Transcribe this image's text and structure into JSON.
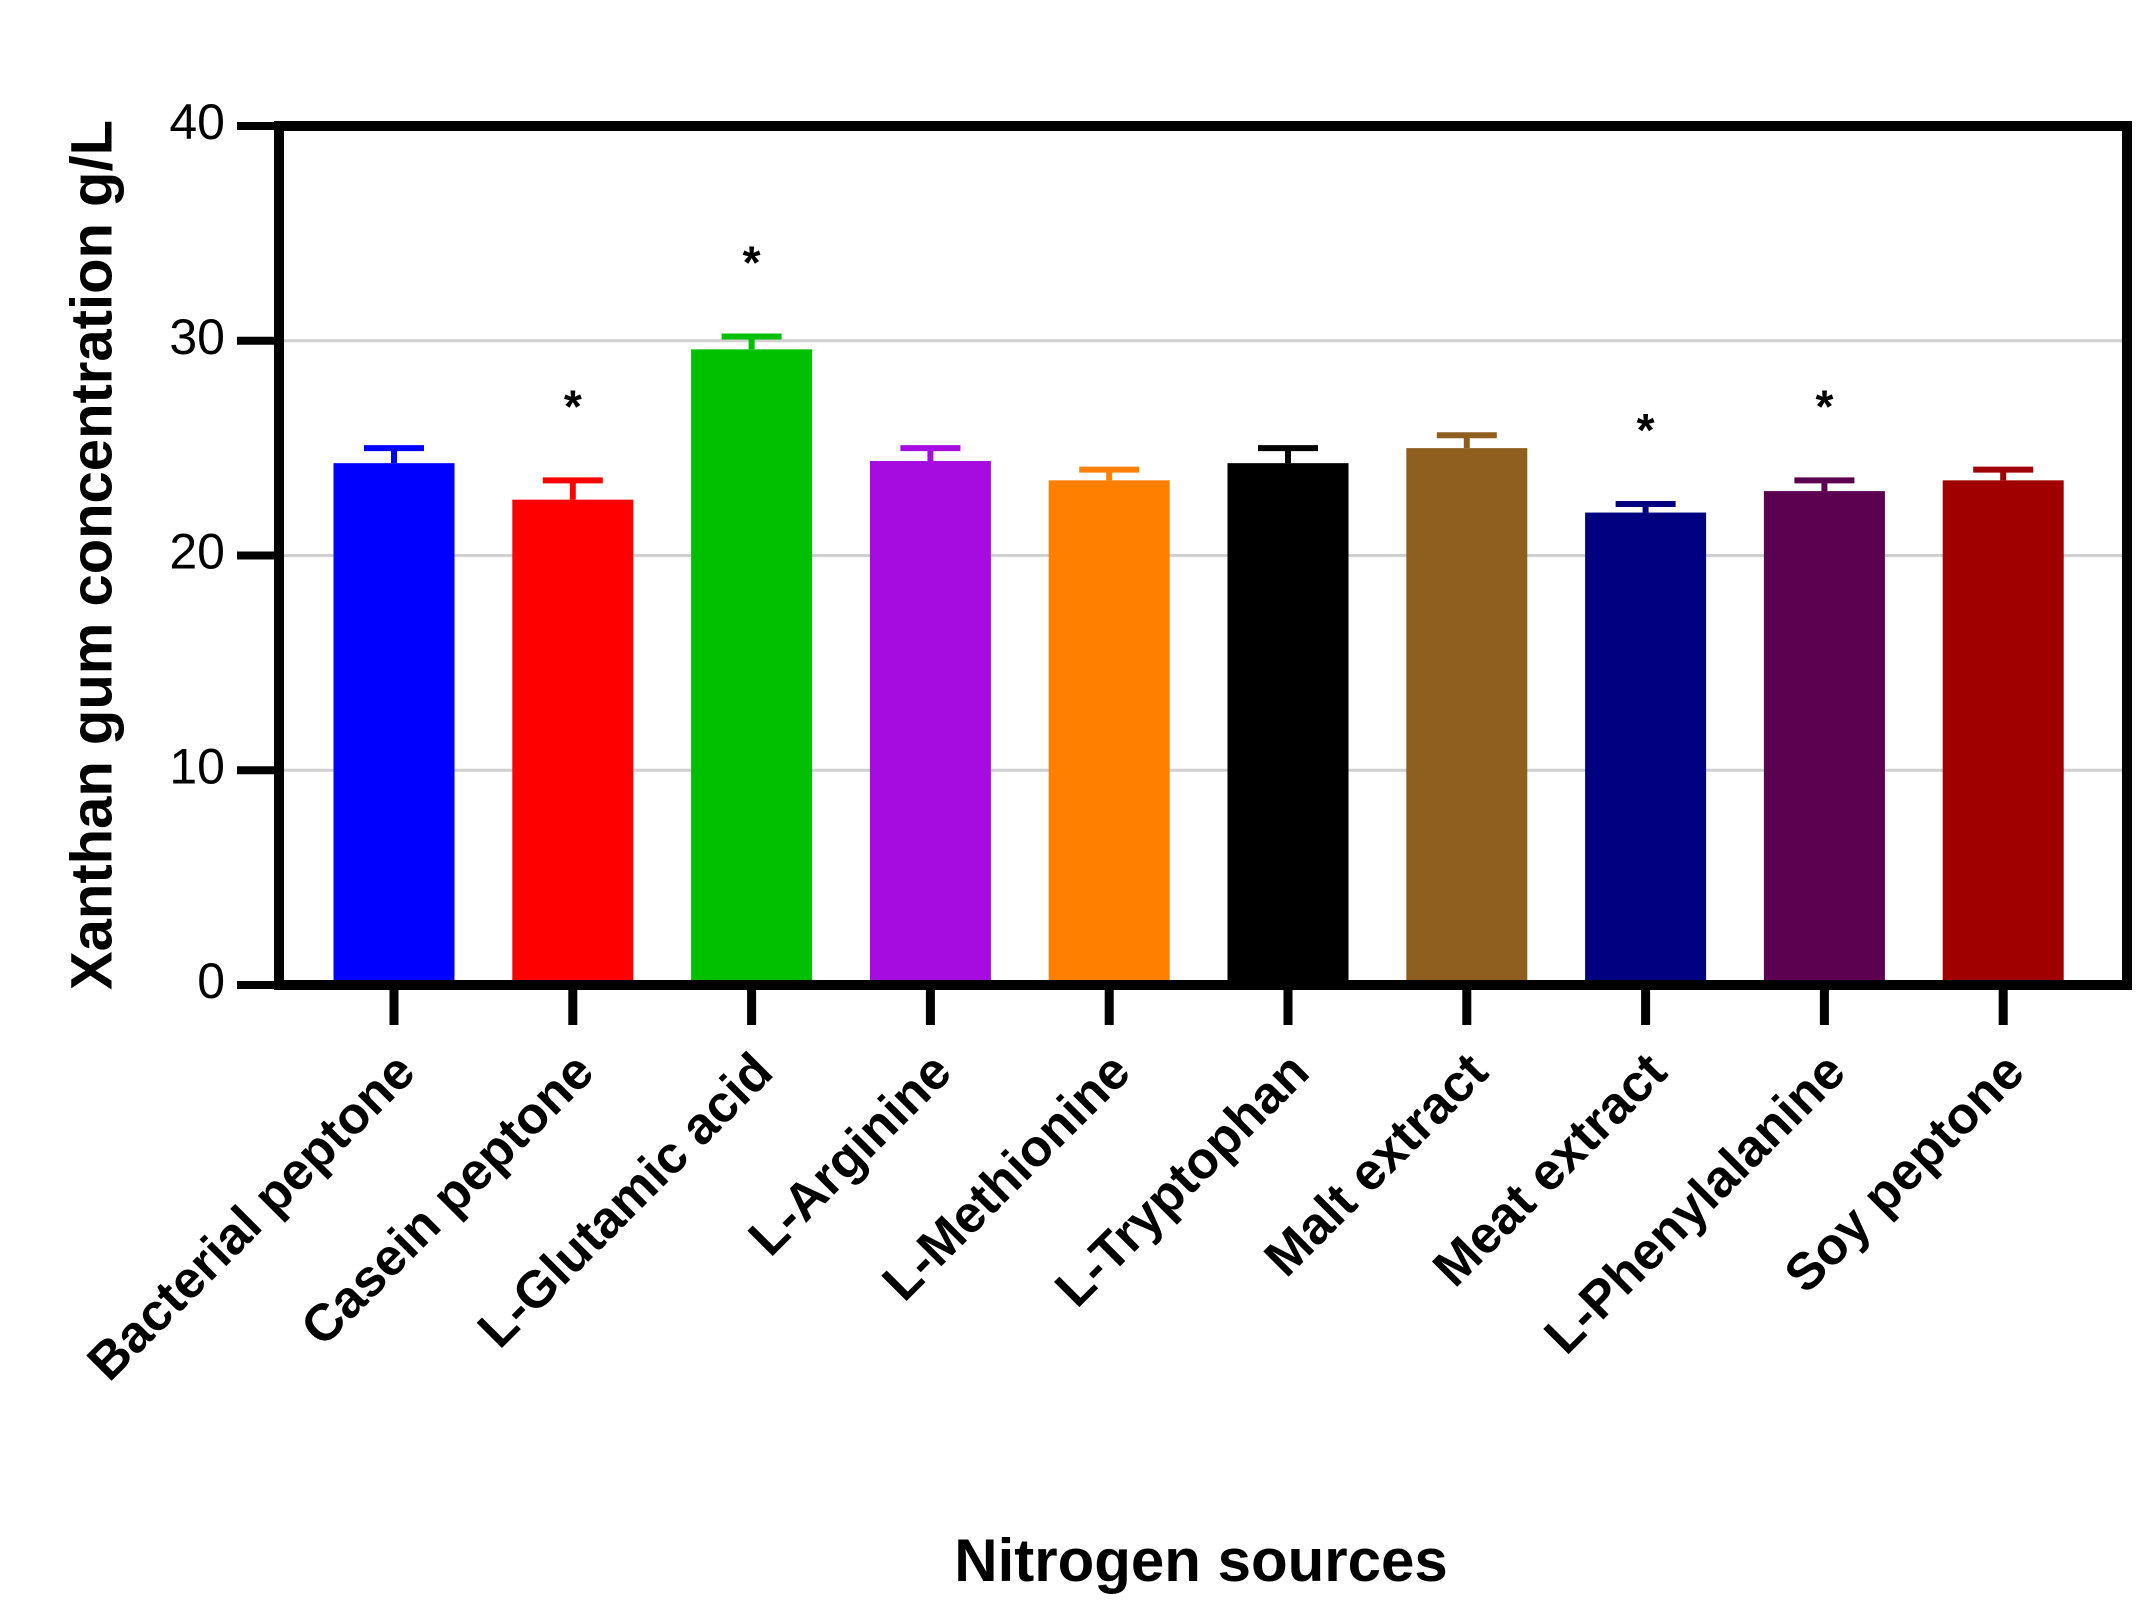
{
  "chart_data": {
    "type": "bar",
    "x_label": "Nitrogen sources",
    "y_label": "Xanthan gum concentration g/L",
    "categories": [
      "Bacterial peptone",
      "Casein peptone",
      "L-Glutamic acid",
      "L-Arginine",
      "L-Methionine",
      "L-Tryptophan",
      "Malt extract",
      "Meat extract",
      "L-Phenylalanine",
      "Soy peptone"
    ],
    "values": [
      24.3,
      22.6,
      29.6,
      24.4,
      23.5,
      24.3,
      25.0,
      22.0,
      23.0,
      23.5
    ],
    "errors": [
      0.7,
      0.9,
      0.6,
      0.6,
      0.5,
      0.7,
      0.6,
      0.4,
      0.5,
      0.5
    ],
    "colors": [
      "#0000ff",
      "#ff0000",
      "#00c000",
      "#a60ce0",
      "#ff8000",
      "#000000",
      "#8f5f1f",
      "#000080",
      "#5c0050",
      "#a00000"
    ],
    "significance": [
      null,
      "*",
      "*",
      null,
      null,
      null,
      null,
      "*",
      "*",
      null
    ],
    "ylim": [
      0,
      40
    ],
    "yticks": [
      0,
      10,
      20,
      30,
      40
    ],
    "grid": true
  }
}
